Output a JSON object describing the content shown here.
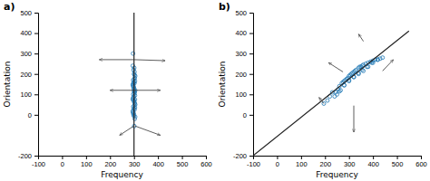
{
  "chart_data": [
    {
      "type": "scatter",
      "title": "a)",
      "x_label": "Frequency",
      "y_label": "Orientation",
      "xlim": [
        -100,
        600
      ],
      "ylim": [
        -200,
        500
      ],
      "xticks": [
        -100,
        0,
        100,
        200,
        300,
        400,
        500,
        600
      ],
      "yticks": [
        -200,
        0,
        100,
        200,
        300,
        400,
        500
      ],
      "series": [
        {
          "type": "scatter",
          "marker": "circle",
          "x": [
            295,
            298,
            300,
            302,
            305,
            297,
            303,
            299,
            301,
            296,
            304,
            298,
            302,
            300,
            295,
            305,
            298,
            303,
            300,
            297,
            302,
            299,
            301,
            296,
            304,
            300,
            298,
            302,
            295,
            305,
            300,
            297,
            303,
            299,
            301,
            296,
            304,
            298,
            302,
            300,
            295,
            305,
            297,
            303,
            299,
            301,
            302,
            298,
            300,
            304,
            296,
            301
          ],
          "values": [
            240,
            220,
            200,
            210,
            190,
            170,
            180,
            160,
            175,
            150,
            165,
            140,
            155,
            130,
            145,
            120,
            135,
            110,
            125,
            100,
            115,
            90,
            105,
            80,
            95,
            70,
            85,
            60,
            75,
            50,
            65,
            40,
            55,
            30,
            45,
            20,
            35,
            10,
            25,
            0,
            15,
            -10,
            5,
            -20,
            -5,
            230,
            195,
            155,
            115,
            75,
            300,
            -55
          ]
        }
      ],
      "vline": 300,
      "arrows": [
        [
          300,
          270,
          155,
          270
        ],
        [
          300,
          120,
          200,
          120
        ],
        [
          299,
          -55,
          240,
          -100
        ],
        [
          300,
          270,
          430,
          265
        ],
        [
          300,
          120,
          410,
          120
        ],
        [
          305,
          -55,
          410,
          -100
        ]
      ]
    },
    {
      "type": "scatter",
      "title": "b)",
      "x_label": "Frequency",
      "y_label": "Orientation",
      "xlim": [
        -100,
        600
      ],
      "ylim": [
        -200,
        500
      ],
      "xticks": [
        -100,
        0,
        100,
        200,
        300,
        400,
        500,
        600
      ],
      "yticks": [
        -200,
        0,
        100,
        200,
        300,
        400,
        500
      ],
      "series": [
        {
          "type": "scatter",
          "marker": "circle",
          "x": [
            195,
            210,
            220,
            230,
            245,
            255,
            260,
            270,
            275,
            280,
            285,
            290,
            295,
            300,
            305,
            310,
            315,
            320,
            325,
            330,
            340,
            345,
            350,
            355,
            360,
            370,
            380,
            390,
            400,
            410,
            420,
            430,
            440,
            250,
            265,
            280,
            300,
            320,
            340,
            360,
            380,
            400,
            420,
            240,
            260,
            280,
            300,
            320,
            340,
            355,
            375,
            395
          ],
          "values": [
            55,
            70,
            90,
            110,
            110,
            125,
            140,
            155,
            160,
            165,
            170,
            175,
            180,
            190,
            195,
            200,
            205,
            210,
            215,
            220,
            230,
            235,
            235,
            240,
            245,
            250,
            255,
            260,
            265,
            270,
            270,
            275,
            280,
            100,
            120,
            145,
            165,
            185,
            200,
            215,
            235,
            255,
            270,
            90,
            115,
            145,
            170,
            185,
            205,
            220,
            235,
            255
          ]
        },
        {
          "type": "line",
          "line_style": "solid",
          "x": [
            -100,
            550
          ],
          "values": [
            -200,
            410
          ]
        }
      ],
      "arrows": [
        [
          195,
          55,
          175,
          85
        ],
        [
          275,
          210,
          215,
          255
        ],
        [
          360,
          360,
          340,
          395
        ],
        [
          320,
          45,
          320,
          -85
        ],
        [
          440,
          215,
          485,
          270
        ]
      ]
    }
  ]
}
